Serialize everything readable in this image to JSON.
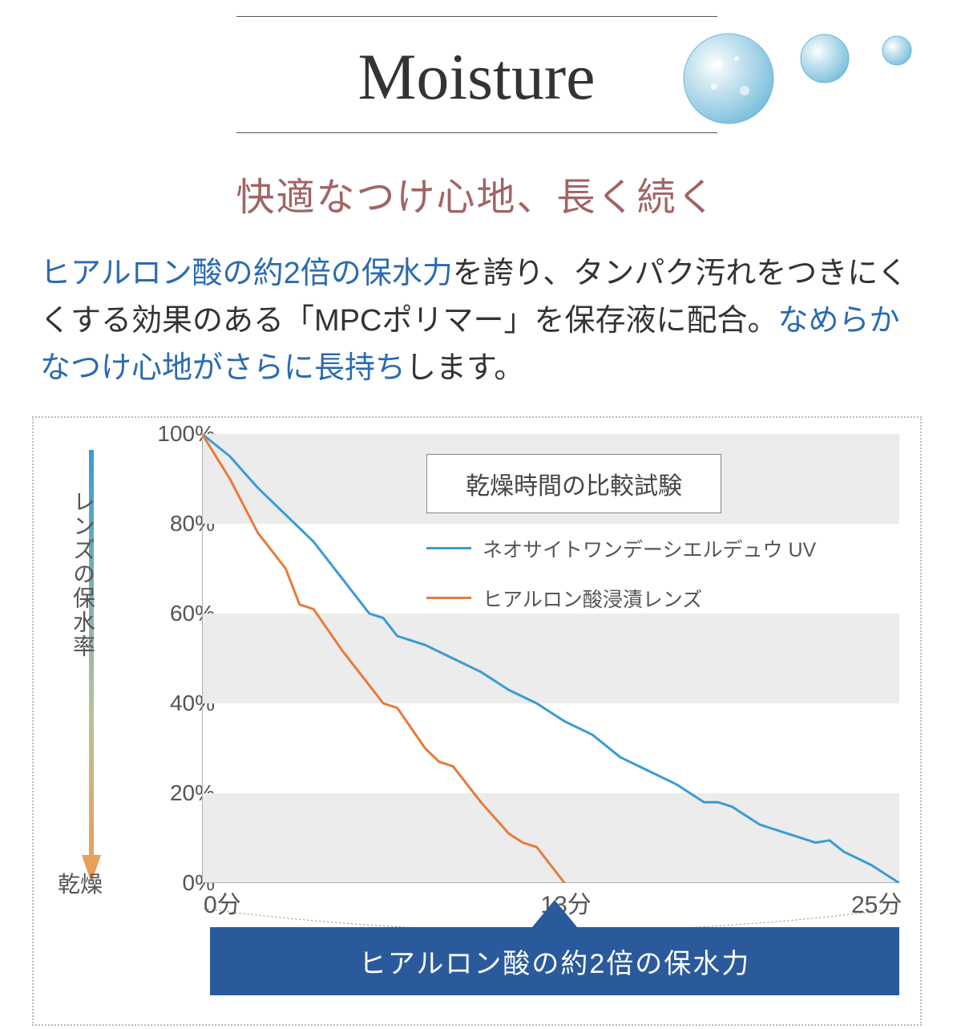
{
  "header": {
    "title_en": "Moisture",
    "subtitle": "快適なつけ心地、長く続く",
    "body_parts": [
      {
        "text": "ヒアルロン酸の約2倍の保水力",
        "hl": true
      },
      {
        "text": "を誇り、タンパク汚れをつきにくくする効果のある「MPCポリマー」を保存液に配合。",
        "hl": false
      },
      {
        "text": "なめらかなつけ心地がさらに長持ち",
        "hl": true
      },
      {
        "text": "します。",
        "hl": false
      }
    ],
    "title_color": "#333333",
    "subtitle_color": "#a26464",
    "hl_color": "#2a6bb0",
    "drop_colors": {
      "fill": "#a8d4e8",
      "stroke": "#6cb8d8"
    }
  },
  "chart": {
    "type": "line",
    "title_box": "乾燥時間の比較試験",
    "y_label_top": "レンズの保水率",
    "y_label_bottom": "乾燥",
    "xlim": [
      0,
      25
    ],
    "ylim": [
      0,
      100
    ],
    "yticks": [
      0,
      20,
      40,
      60,
      80,
      100
    ],
    "ytick_labels": [
      "0%",
      "20%",
      "40%",
      "60%",
      "80%",
      "100%"
    ],
    "xticks": [
      0,
      13,
      25
    ],
    "xtick_labels": [
      "0分",
      "13分",
      "25分"
    ],
    "grid_band_color": "#ececec",
    "background_color": "#ffffff",
    "axis_color": "#999999",
    "line_width": 3,
    "series": [
      {
        "name": "ネオサイトワンデーシエルデュウ UV",
        "color": "#3b9bd4",
        "points": [
          [
            0,
            100
          ],
          [
            1,
            95
          ],
          [
            2,
            88
          ],
          [
            3,
            82
          ],
          [
            4,
            76
          ],
          [
            5,
            68
          ],
          [
            6,
            60
          ],
          [
            6.5,
            59
          ],
          [
            7,
            55
          ],
          [
            8,
            53
          ],
          [
            9,
            50
          ],
          [
            10,
            47
          ],
          [
            11,
            43
          ],
          [
            12,
            40
          ],
          [
            13,
            36
          ],
          [
            14,
            33
          ],
          [
            15,
            28
          ],
          [
            16,
            25
          ],
          [
            17,
            22
          ],
          [
            18,
            18
          ],
          [
            18.5,
            18
          ],
          [
            19,
            17
          ],
          [
            20,
            13
          ],
          [
            21,
            11
          ],
          [
            22,
            9
          ],
          [
            22.5,
            9.5
          ],
          [
            23,
            7
          ],
          [
            24,
            4
          ],
          [
            25,
            0
          ]
        ]
      },
      {
        "name": "ヒアルロン酸浸漬レンズ",
        "color": "#e67b3a",
        "points": [
          [
            0,
            100
          ],
          [
            1,
            90
          ],
          [
            2,
            78
          ],
          [
            3,
            70
          ],
          [
            3.5,
            62
          ],
          [
            4,
            61
          ],
          [
            5,
            52
          ],
          [
            6,
            44
          ],
          [
            6.5,
            40
          ],
          [
            7,
            39
          ],
          [
            8,
            30
          ],
          [
            8.5,
            27
          ],
          [
            9,
            26
          ],
          [
            10,
            18
          ],
          [
            11,
            11
          ],
          [
            11.5,
            9
          ],
          [
            12,
            8
          ],
          [
            13,
            0
          ]
        ]
      }
    ],
    "arrow": {
      "top_color": "#3b9bd4",
      "bottom_color": "#e6a05a"
    },
    "callout": {
      "text": "ヒアルロン酸の約2倍の保水力",
      "bg": "#2a5a9c",
      "fg": "#ffffff"
    },
    "brace_x_range": [
      0,
      25
    ],
    "brace_color": "#888888"
  }
}
